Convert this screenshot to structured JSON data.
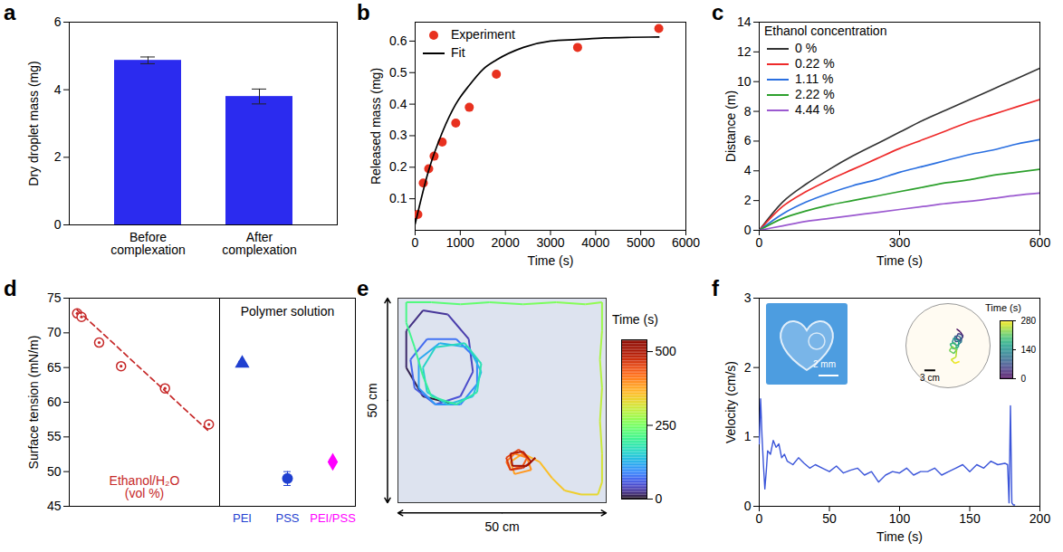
{
  "chart_data": [
    {
      "panel": "a",
      "type": "bar",
      "categories": [
        "Before complexation",
        "After complexation"
      ],
      "values": [
        4.87,
        3.8
      ],
      "errors": [
        0.1,
        0.22
      ],
      "color": "#2b2bef",
      "ylabel": "Dry droplet mass (mg)",
      "ylim": [
        0,
        6
      ],
      "yticks": [
        0,
        2,
        4,
        6
      ]
    },
    {
      "panel": "b",
      "type": "scatter",
      "xlabel": "Time (s)",
      "ylabel": "Released mass (mg)",
      "xlim": [
        0,
        6000
      ],
      "xticks": [
        0,
        1000,
        2000,
        3000,
        4000,
        5000,
        6000
      ],
      "ylim": [
        0,
        0.66
      ],
      "yticks": [
        0.1,
        0.2,
        0.3,
        0.4,
        0.5,
        0.6
      ],
      "legend": "top-left",
      "series": [
        {
          "name": "Experiment",
          "type": "scatter",
          "marker": "circle",
          "color": "#e8311f",
          "x": [
            60,
            180,
            300,
            420,
            600,
            900,
            1200,
            1800,
            3600,
            5400
          ],
          "values": [
            0.05,
            0.15,
            0.195,
            0.235,
            0.28,
            0.34,
            0.39,
            0.495,
            0.58,
            0.64
          ]
        },
        {
          "name": "Fit",
          "type": "line",
          "color": "#000000",
          "x": [
            0,
            300,
            600,
            900,
            1200,
            1500,
            1800,
            2400,
            3000,
            3600,
            4200,
            4800,
            5400
          ],
          "values": [
            0.02,
            0.19,
            0.31,
            0.4,
            0.46,
            0.51,
            0.54,
            0.58,
            0.6,
            0.605,
            0.61,
            0.612,
            0.613
          ]
        }
      ]
    },
    {
      "panel": "c",
      "type": "line",
      "xlabel": "Time (s)",
      "ylabel": "Distance (m)",
      "xlim": [
        0,
        600
      ],
      "xticks": [
        0,
        300,
        600
      ],
      "ylim": [
        0,
        14
      ],
      "yticks": [
        0,
        2,
        4,
        6,
        8,
        10,
        12,
        14
      ],
      "legend": "top-left",
      "legend_title": "Ethanol concentration",
      "x": [
        0,
        50,
        100,
        150,
        200,
        250,
        300,
        350,
        400,
        450,
        500,
        550,
        600
      ],
      "series": [
        {
          "name": "0 %",
          "color": "#333333",
          "values": [
            0,
            1.9,
            3.1,
            4.1,
            5.0,
            5.8,
            6.6,
            7.4,
            8.1,
            8.8,
            9.5,
            10.2,
            10.9
          ]
        },
        {
          "name": "0.22 %",
          "color": "#ee2a2a",
          "values": [
            0,
            1.6,
            2.6,
            3.4,
            4.1,
            4.8,
            5.5,
            6.1,
            6.7,
            7.3,
            7.8,
            8.3,
            8.8
          ]
        },
        {
          "name": "1.11 %",
          "color": "#2a6fe0",
          "values": [
            0,
            1.1,
            1.9,
            2.5,
            3.0,
            3.4,
            3.9,
            4.3,
            4.7,
            5.1,
            5.4,
            5.8,
            6.1
          ]
        },
        {
          "name": "2.22 %",
          "color": "#2ca02c",
          "values": [
            0,
            0.8,
            1.3,
            1.7,
            2.0,
            2.3,
            2.6,
            2.9,
            3.2,
            3.4,
            3.7,
            3.9,
            4.1
          ]
        },
        {
          "name": "4.44 %",
          "color": "#9b59d0",
          "values": [
            0,
            0.3,
            0.6,
            0.8,
            1.0,
            1.2,
            1.4,
            1.6,
            1.8,
            1.95,
            2.15,
            2.35,
            2.5
          ]
        }
      ]
    },
    {
      "panel": "d",
      "type": "scatter",
      "ylabel": "Surface tension (mN/m)",
      "xlim": [
        -0.4,
        7.2
      ],
      "ylim": [
        45,
        75
      ],
      "yticks": [
        45,
        50,
        55,
        60,
        65,
        70,
        75
      ],
      "tick_labels": "y",
      "annotations": [
        "Ethanol/H₂O (vol %)"
      ],
      "series": [
        {
          "type": "scatter",
          "marker": "open_circle",
          "color": "#c62828",
          "x": [
            0,
            0.22,
            1.11,
            2.22,
            4.44,
            6.66
          ],
          "values": [
            72.8,
            72.3,
            68.6,
            65.2,
            62.0,
            56.8
          ],
          "errors": [
            0.3,
            0.3,
            0.5,
            0.4,
            0.3,
            0.3
          ]
        },
        {
          "type": "line",
          "line_style": "dashed",
          "color": "#c62828",
          "x": [
            0,
            6.66
          ],
          "values": [
            73.3,
            55.8
          ]
        }
      ]
    },
    {
      "panel": "d",
      "type": "scatter",
      "title": "Polymer solution",
      "categories": [
        "PEI",
        "PSS",
        "PEI/PSS"
      ],
      "ylim": [
        45,
        75
      ],
      "tick_labels": "x",
      "series": [
        {
          "marker": "triangle",
          "color": "#1f3fd0",
          "values": [
            65.6,
            null,
            null
          ],
          "errors": [
            0.3,
            null,
            null
          ]
        },
        {
          "marker": "circle",
          "color": "#1f3fd0",
          "values": [
            null,
            49.0,
            null
          ],
          "errors": [
            null,
            1.0,
            null
          ]
        },
        {
          "marker": "diamond",
          "color": "#ff00ff",
          "values": [
            null,
            null,
            51.4
          ],
          "errors": [
            null,
            null,
            0.3
          ]
        }
      ]
    },
    {
      "panel": "e",
      "type": "trajectory",
      "xlabel": "50 cm",
      "ylabel": "50 cm",
      "xlim": [
        0,
        50
      ],
      "ylim": [
        0,
        50
      ],
      "tick_labels": false,
      "x": [
        14,
        6,
        2,
        2,
        6,
        12,
        17,
        18,
        15,
        9,
        4,
        3,
        7,
        14,
        19,
        19,
        15,
        9,
        5,
        5,
        10,
        17,
        20,
        18,
        12,
        7,
        6,
        9,
        16,
        20,
        19,
        14,
        8,
        6,
        4,
        2,
        2,
        8,
        15,
        22,
        30,
        38,
        45,
        49,
        49,
        48.5,
        49,
        48.5,
        49,
        49,
        48,
        44,
        40,
        37,
        34,
        30,
        27,
        28,
        32,
        31,
        28,
        26,
        27,
        30,
        31,
        29,
        26,
        27,
        30,
        32,
        30,
        27,
        27.5,
        31,
        33
      ],
      "y": [
        24,
        26,
        33,
        42,
        47,
        46,
        40,
        32,
        26,
        24,
        28,
        35,
        40,
        40,
        35,
        29,
        24,
        24,
        28,
        35,
        39,
        38,
        32,
        26,
        24,
        27,
        33,
        38,
        39,
        34,
        27,
        24,
        26,
        31,
        38,
        44,
        49,
        49,
        48.5,
        49,
        48.5,
        49,
        48.5,
        49,
        42,
        35,
        28,
        20,
        12,
        5,
        2,
        2,
        3,
        6,
        10,
        12,
        10,
        7,
        8,
        11,
        12,
        10,
        8,
        9,
        11,
        13,
        11,
        8,
        8.5,
        10,
        12.5,
        12,
        9,
        9,
        11
      ],
      "time": [
        0,
        6,
        12,
        18,
        24,
        30,
        36,
        42,
        48,
        54,
        60,
        66,
        72,
        78,
        84,
        90,
        96,
        102,
        108,
        114,
        120,
        126,
        132,
        138,
        144,
        150,
        156,
        162,
        168,
        174,
        180,
        186,
        192,
        198,
        204,
        210,
        216,
        224,
        232,
        240,
        248,
        256,
        264,
        272,
        280,
        288,
        296,
        304,
        312,
        320,
        328,
        336,
        344,
        352,
        360,
        368,
        376,
        384,
        392,
        400,
        408,
        416,
        424,
        432,
        440,
        448,
        456,
        464,
        472,
        480,
        488,
        496,
        504,
        512,
        520
      ],
      "colorbar": {
        "label": "Time (s)",
        "range": [
          0,
          540
        ],
        "ticks": [
          0,
          250,
          500
        ]
      }
    },
    {
      "panel": "f",
      "type": "line",
      "xlabel": "Time (s)",
      "ylabel": "Velocity (cm/s)",
      "color": "#3b55d9",
      "xlim": [
        0,
        200
      ],
      "xticks": [
        0,
        50,
        100,
        150,
        200
      ],
      "ylim": [
        0,
        3
      ],
      "yticks": [
        0,
        1,
        2,
        3
      ],
      "x": [
        0,
        1,
        2,
        3,
        4,
        5,
        6,
        8,
        10,
        12,
        14,
        16,
        18,
        20,
        24,
        28,
        32,
        36,
        40,
        45,
        50,
        55,
        60,
        65,
        70,
        75,
        80,
        85,
        90,
        95,
        100,
        105,
        110,
        115,
        120,
        125,
        130,
        135,
        140,
        145,
        150,
        155,
        160,
        165,
        170,
        175,
        177,
        178,
        179,
        180,
        181,
        182
      ],
      "values": [
        0.9,
        1.55,
        1,
        0.6,
        0.25,
        0.5,
        0.8,
        0.75,
        0.95,
        0.85,
        0.9,
        0.7,
        0.75,
        0.65,
        0.6,
        0.7,
        0.62,
        0.55,
        0.6,
        0.55,
        0.5,
        0.58,
        0.48,
        0.52,
        0.55,
        0.45,
        0.5,
        0.35,
        0.45,
        0.5,
        0.48,
        0.55,
        0.45,
        0.5,
        0.5,
        0.55,
        0.45,
        0.5,
        0.55,
        0.6,
        0.5,
        0.6,
        0.55,
        0.65,
        0.6,
        0.62,
        0.6,
        0.05,
        1.45,
        0.05,
        0.02,
        0.02
      ],
      "insets": [
        {
          "type": "image",
          "scale_bar": {
            "label": "2 mm"
          }
        },
        {
          "type": "trajectory",
          "xlim": [
            -11.5,
            11.5
          ],
          "ylim": [
            -11.5,
            11.5
          ],
          "x": [
            2,
            3,
            3.8,
            3,
            1.8,
            2.5,
            3.6,
            3.2,
            1.6,
            1.5,
            2.8,
            3.4,
            2.2,
            0.8,
            1.2,
            2.6,
            2.5,
            1,
            0.2,
            1.5,
            2.2,
            1.2,
            0,
            0.8,
            2,
            1.8,
            0.5,
            1.5,
            2.8
          ],
          "y": [
            5,
            4.2,
            3,
            1.8,
            2.5,
            3.8,
            3.2,
            1.6,
            1.5,
            3,
            3,
            1.5,
            0.4,
            1.2,
            2.5,
            1.8,
            0,
            -0.5,
            0.8,
            1.2,
            -0.5,
            -1.8,
            -1,
            0.2,
            -1,
            -2.8,
            -3.5,
            -4.5,
            -4
          ],
          "time": [
            0,
            10,
            20,
            30,
            40,
            50,
            60,
            70,
            80,
            90,
            100,
            110,
            120,
            130,
            140,
            150,
            160,
            170,
            180,
            190,
            200,
            210,
            220,
            230,
            240,
            250,
            260,
            270,
            280
          ],
          "scale_bar": {
            "length": 3,
            "label": "3 cm"
          },
          "colorbar": {
            "label": "Time (s)",
            "range": [
              0,
              280
            ],
            "ticks": [
              0,
              140,
              280
            ]
          }
        }
      ]
    }
  ]
}
